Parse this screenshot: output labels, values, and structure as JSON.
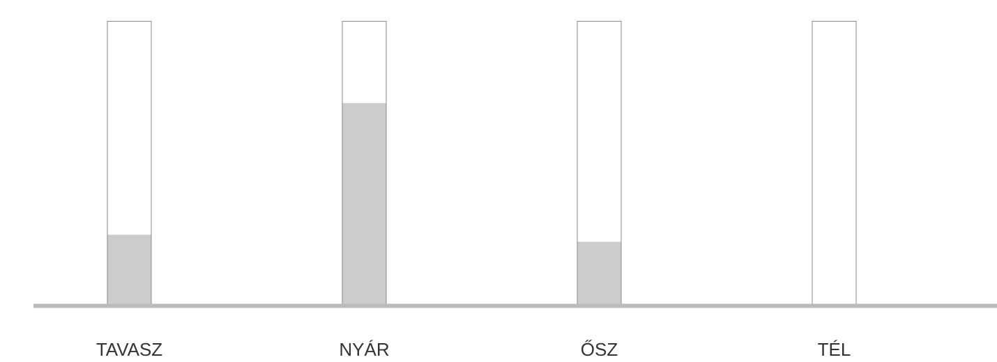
{
  "chart_data": {
    "type": "bar",
    "categories": [
      "TAVASZ",
      "NYÁR",
      "ŐSZ",
      "TÉL"
    ],
    "values": [
      0.245,
      0.71,
      0.22,
      0
    ],
    "ylim": [
      0,
      1
    ],
    "grid": false,
    "colors": {
      "fill": "#cccccc",
      "outline": "#888888",
      "baseline": "#bbbbbb",
      "label": "#333333"
    }
  }
}
